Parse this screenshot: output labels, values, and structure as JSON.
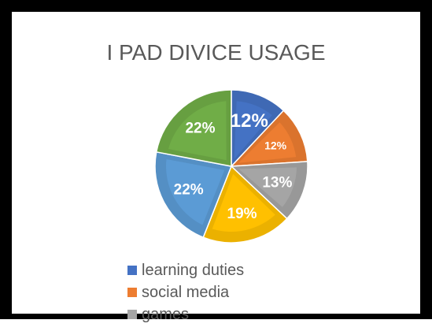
{
  "chart_data": {
    "type": "pie",
    "title": "I PAD DIVICE USAGE",
    "slices": [
      {
        "label": "learning duties",
        "value": 12,
        "display": "12%",
        "color": "#4472C4"
      },
      {
        "label": "social media",
        "value": 12,
        "display": "12%",
        "color": "#ED7D31"
      },
      {
        "label": "games",
        "value": 13,
        "display": "13%",
        "color": "#A5A5A5"
      },
      {
        "label": "",
        "value": 19,
        "display": "19%",
        "color": "#FFC000"
      },
      {
        "label": "",
        "value": 22,
        "display": "22%",
        "color": "#5B9BD5"
      },
      {
        "label": "",
        "value": 22,
        "display": "22%",
        "color": "#70AD47"
      }
    ],
    "legend": [
      {
        "label": "learning duties",
        "color": "#4472C4"
      },
      {
        "label": "social media",
        "color": "#ED7D31"
      },
      {
        "label": "games",
        "color": "#A5A5A5"
      }
    ],
    "legend_position": "bottom"
  }
}
